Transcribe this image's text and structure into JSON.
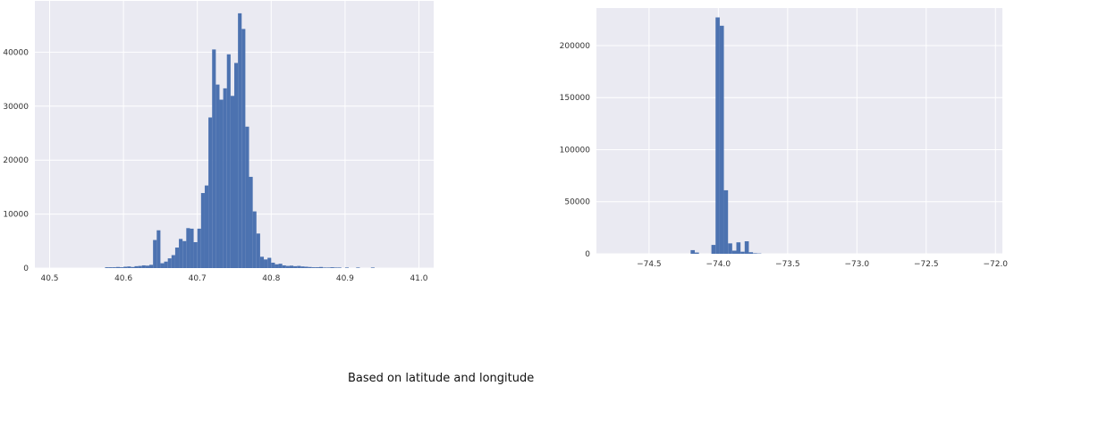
{
  "caption": "Based on latitude and longitude",
  "colors": {
    "bar": "#4c72b0",
    "plot_bg": "#eaeaf2",
    "grid": "#ffffff"
  },
  "chart_data": [
    {
      "type": "bar",
      "xlim": [
        40.48,
        41.02
      ],
      "ylim": [
        0,
        49500
      ],
      "xticks": [
        40.5,
        40.6,
        40.7,
        40.8,
        40.9,
        41.0
      ],
      "xtick_labels": [
        "40.5",
        "40.6",
        "40.7",
        "40.8",
        "40.9",
        "41.0"
      ],
      "yticks": [
        0,
        10000,
        20000,
        30000,
        40000
      ],
      "ytick_labels": [
        "0",
        "10000",
        "20000",
        "30000",
        "40000"
      ],
      "grid": true,
      "bin_width": 0.005,
      "bins": [
        [
          40.575,
          150
        ],
        [
          40.58,
          150
        ],
        [
          40.585,
          150
        ],
        [
          40.59,
          200
        ],
        [
          40.595,
          150
        ],
        [
          40.6,
          250
        ],
        [
          40.605,
          300
        ],
        [
          40.61,
          200
        ],
        [
          40.615,
          350
        ],
        [
          40.62,
          400
        ],
        [
          40.625,
          500
        ],
        [
          40.63,
          450
        ],
        [
          40.635,
          600
        ],
        [
          40.64,
          5200
        ],
        [
          40.645,
          7000
        ],
        [
          40.65,
          900
        ],
        [
          40.655,
          1200
        ],
        [
          40.66,
          1800
        ],
        [
          40.665,
          2400
        ],
        [
          40.67,
          3800
        ],
        [
          40.675,
          5400
        ],
        [
          40.68,
          5000
        ],
        [
          40.685,
          7400
        ],
        [
          40.69,
          7300
        ],
        [
          40.695,
          4800
        ],
        [
          40.7,
          7300
        ],
        [
          40.705,
          13900
        ],
        [
          40.71,
          15300
        ],
        [
          40.715,
          27900
        ],
        [
          40.72,
          40500
        ],
        [
          40.725,
          34000
        ],
        [
          40.73,
          31200
        ],
        [
          40.735,
          33300
        ],
        [
          40.74,
          39600
        ],
        [
          40.745,
          31900
        ],
        [
          40.75,
          38000
        ],
        [
          40.755,
          47200
        ],
        [
          40.76,
          44300
        ],
        [
          40.765,
          26200
        ],
        [
          40.77,
          16900
        ],
        [
          40.775,
          10500
        ],
        [
          40.78,
          6400
        ],
        [
          40.785,
          2100
        ],
        [
          40.79,
          1600
        ],
        [
          40.795,
          1900
        ],
        [
          40.8,
          1000
        ],
        [
          40.805,
          700
        ],
        [
          40.81,
          800
        ],
        [
          40.815,
          500
        ],
        [
          40.82,
          400
        ],
        [
          40.825,
          450
        ],
        [
          40.83,
          350
        ],
        [
          40.835,
          400
        ],
        [
          40.84,
          300
        ],
        [
          40.845,
          250
        ],
        [
          40.85,
          200
        ],
        [
          40.855,
          150
        ],
        [
          40.86,
          150
        ],
        [
          40.865,
          200
        ],
        [
          40.87,
          100
        ],
        [
          40.875,
          100
        ],
        [
          40.88,
          150
        ],
        [
          40.885,
          100
        ],
        [
          40.89,
          100
        ],
        [
          40.9,
          100
        ],
        [
          40.915,
          100
        ],
        [
          40.935,
          100
        ]
      ]
    },
    {
      "type": "bar",
      "xlim": [
        -74.88,
        -71.95
      ],
      "ylim": [
        0,
        236000
      ],
      "xticks": [
        -74.5,
        -74.0,
        -73.5,
        -73.0,
        -72.5,
        -72.0
      ],
      "xtick_labels": [
        "−74.5",
        "−74.0",
        "−73.5",
        "−73.0",
        "−72.5",
        "−72.0"
      ],
      "yticks": [
        0,
        50000,
        100000,
        150000,
        200000
      ],
      "ytick_labels": [
        "0",
        "50000",
        "100000",
        "150000",
        "200000"
      ],
      "grid": true,
      "bin_width": 0.03,
      "bins": [
        [
          -74.2,
          3500
        ],
        [
          -74.17,
          1200
        ],
        [
          -74.05,
          8500
        ],
        [
          -74.02,
          227000
        ],
        [
          -73.99,
          219000
        ],
        [
          -73.96,
          61000
        ],
        [
          -73.93,
          10000
        ],
        [
          -73.9,
          3000
        ],
        [
          -73.87,
          11000
        ],
        [
          -73.84,
          2000
        ],
        [
          -73.81,
          12000
        ],
        [
          -73.78,
          1500
        ],
        [
          -73.75,
          500
        ],
        [
          -73.72,
          300
        ]
      ]
    }
  ]
}
